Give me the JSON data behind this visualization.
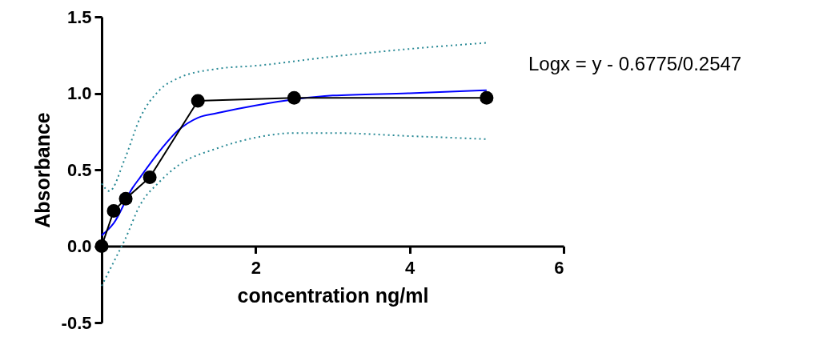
{
  "chart_data": {
    "type": "line",
    "xlabel": "concentration ng/ml",
    "ylabel": "Absorbance",
    "annotations": [
      "Logx = y - 0.6775/0.2547"
    ],
    "xlim": [
      0,
      6
    ],
    "xticks": [
      {
        "value": 0,
        "label": null
      },
      2,
      4,
      6
    ],
    "ylim": [
      -0.5,
      1.5
    ],
    "yticks": [
      {
        "value": -0.5,
        "label": "-0.5"
      },
      {
        "value": 0,
        "label": "0.0"
      },
      {
        "value": 0.5,
        "label": "0.5"
      },
      {
        "value": 1,
        "label": "1.0"
      },
      {
        "value": 1.5,
        "label": "1.5"
      }
    ],
    "series": [
      {
        "color": "#2a8a96",
        "line_style": "dotted",
        "marker": "none",
        "x": [
          0,
          0.1,
          0.3,
          0.5,
          0.75,
          1.0,
          1.5,
          2,
          3,
          4,
          5
        ],
        "values": [
          0.41,
          0.36,
          0.57,
          0.84,
          1.02,
          1.1,
          1.16,
          1.18,
          1.24,
          1.29,
          1.33
        ]
      },
      {
        "color": "#2a8a96",
        "line_style": "dotted",
        "marker": "none",
        "x": [
          0,
          0.2,
          0.3,
          0.5,
          0.75,
          1.0,
          1.5,
          2,
          2.5,
          3,
          4,
          5
        ],
        "values": [
          -0.26,
          -0.06,
          0.04,
          0.27,
          0.42,
          0.53,
          0.64,
          0.71,
          0.74,
          0.74,
          0.72,
          0.7
        ]
      },
      {
        "color": "#0000ff",
        "line_style": "solid",
        "marker": "none",
        "x": [
          0,
          0.156,
          0.4,
          0.5,
          0.75,
          1.0,
          1.25,
          1.5,
          2,
          3,
          4,
          5
        ],
        "values": [
          0.07,
          0.15,
          0.38,
          0.45,
          0.62,
          0.76,
          0.84,
          0.87,
          0.92,
          0.985,
          1.0,
          1.02
        ]
      },
      {
        "color": "#000000",
        "line_style": "solid",
        "marker": "circle",
        "x": [
          0,
          0.156,
          0.3125,
          0.625,
          1.25,
          2.5,
          5
        ],
        "values": [
          0,
          0.23,
          0.31,
          0.45,
          0.95,
          0.97,
          0.97
        ]
      }
    ]
  }
}
